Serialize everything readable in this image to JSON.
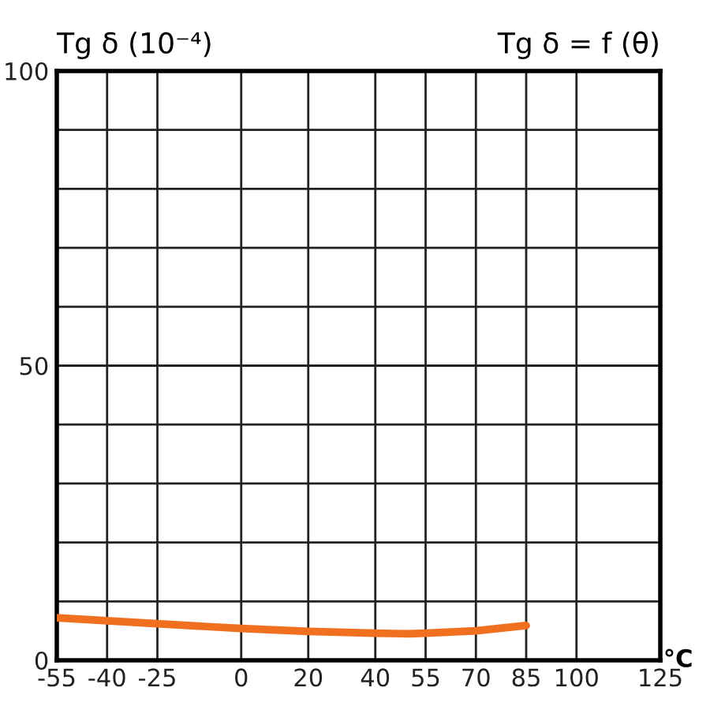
{
  "chart_data": {
    "type": "line",
    "title": "Tg δ = f (θ)",
    "ylabel": "Tg δ (10⁻⁴)",
    "xlabel": "°C",
    "x": [
      -55,
      -40,
      -25,
      0,
      20,
      40,
      50,
      55,
      70,
      85
    ],
    "series": [
      {
        "color": "#f07020",
        "values": [
          7.2,
          6.7,
          6.2,
          5.4,
          4.9,
          4.6,
          4.5,
          4.6,
          5.0,
          5.9
        ]
      }
    ],
    "xlim": [
      -55,
      125
    ],
    "xticks": [
      -55,
      -40,
      -25,
      0,
      20,
      40,
      55,
      70,
      85,
      100,
      125
    ],
    "ylim": [
      0,
      100
    ],
    "yticks": [
      0,
      {
        "value": 10,
        "label": null
      },
      {
        "value": 20,
        "label": null
      },
      {
        "value": 30,
        "label": null
      },
      {
        "value": 40,
        "label": null
      },
      50,
      {
        "value": 60,
        "label": null
      },
      {
        "value": 70,
        "label": null
      },
      {
        "value": 80,
        "label": null
      },
      {
        "value": 90,
        "label": null
      },
      100
    ],
    "grid": true,
    "marker": "none",
    "line_style": "solid",
    "legend": false
  }
}
